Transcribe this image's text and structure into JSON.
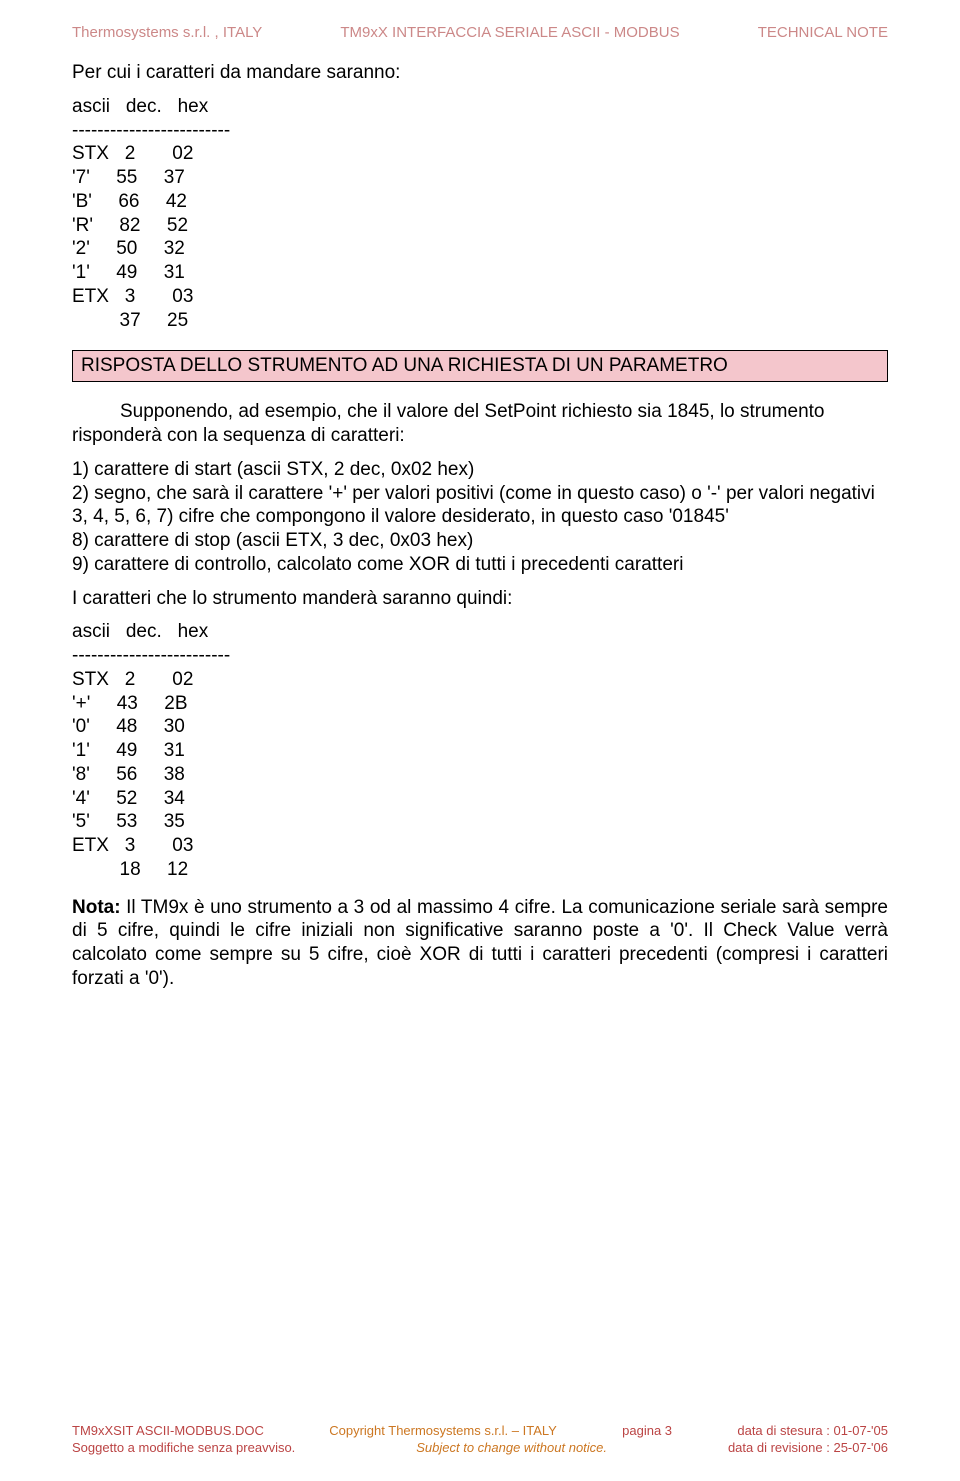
{
  "header": {
    "left": "Thermosystems s.r.l. , ITALY",
    "center": "TM9xX      INTERFACCIA SERIALE ASCII - MODBUS",
    "right": "TECHNICAL NOTE"
  },
  "intro_line": "Per cui i caratteri da mandare saranno:",
  "table1": {
    "header": "ascii   dec.   hex",
    "divider": "-------------------------",
    "rows": [
      "STX   2       02",
      "'7'     55     37",
      "'B'     66     42",
      "'R'     82     52",
      "'2'     50     32",
      "'1'     49     31",
      "ETX   3       03",
      "         37     25"
    ]
  },
  "section_title": "RISPOSTA DELLO STRUMENTO AD UNA RICHIESTA DI UN PARAMETRO",
  "para1": "Supponendo, ad esempio, che il valore del SetPoint richiesto sia 1845, lo strumento risponderà con la sequenza di caratteri:",
  "list": [
    "1) carattere di start (ascii STX, 2 dec, 0x02 hex)",
    "2) segno, che sarà il carattere '+' per valori positivi (come in questo caso) o '-' per valori negativi",
    "3, 4, 5, 6, 7) cifre che compongono il valore desiderato, in questo caso '01845'",
    "8) carattere di stop (ascii ETX, 3 dec, 0x03 hex)",
    "9) carattere di controllo, calcolato come XOR di tutti i precedenti caratteri"
  ],
  "para2": "I caratteri che lo strumento manderà saranno quindi:",
  "table2": {
    "header": "ascii   dec.   hex",
    "divider": "-------------------------",
    "rows": [
      "STX   2       02",
      "'+'     43     2B",
      "'0'     48     30",
      "'1'     49     31",
      "'8'     56     38",
      "'4'     52     34",
      "'5'     53     35",
      "ETX   3       03",
      "         18     12"
    ]
  },
  "note_label": "Nota:",
  "note_body": " Il TM9x è uno strumento a 3 od al massimo 4 cifre. La comunicazione seriale sarà sempre di 5 cifre, quindi le cifre iniziali non significative saranno poste a '0'. Il Check Value verrà calcolato come sempre su 5 cifre, cioè XOR di tutti i caratteri precedenti (compresi i caratteri forzati a '0').",
  "footer": {
    "row1": {
      "left": "TM9xXSIT ASCII-MODBUS.DOC",
      "center": "Copyright Thermosystems s.r.l. – ITALY",
      "page": "pagina 3",
      "right": "data di stesura : 01-07-'05"
    },
    "row2": {
      "left": "Soggetto a modifiche senza preavviso.",
      "center": "Subject to change without notice.",
      "right": "data di revisione : 25-07-'06"
    }
  }
}
